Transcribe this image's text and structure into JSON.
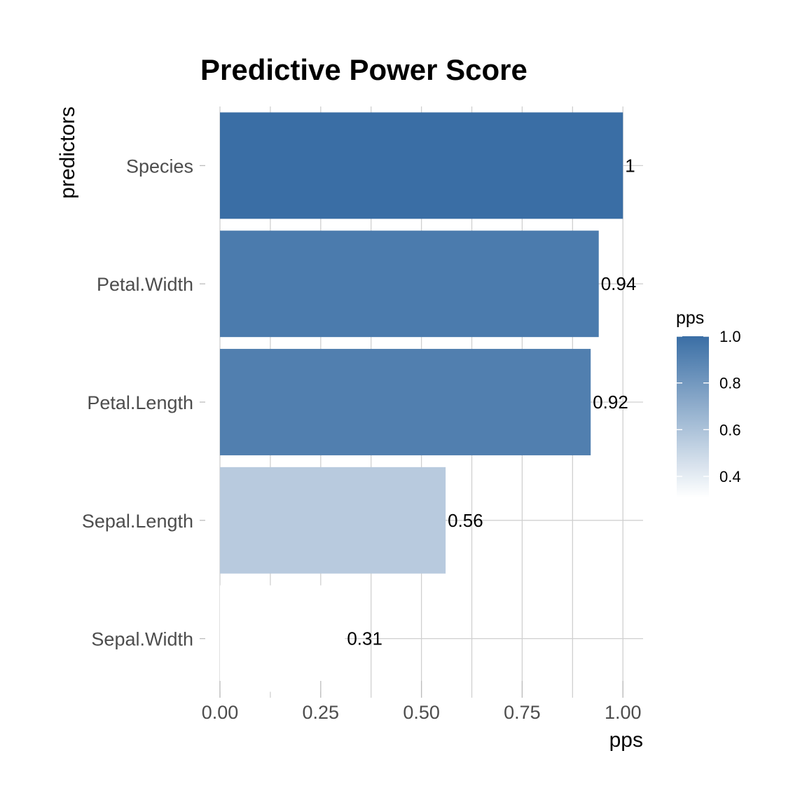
{
  "chart_data": {
    "type": "bar",
    "orientation": "horizontal",
    "title": "Predictive Power Score",
    "xlabel": "pps",
    "ylabel": "predictors",
    "categories": [
      "Species",
      "Petal.Width",
      "Petal.Length",
      "Sepal.Length",
      "Sepal.Width"
    ],
    "values": [
      1.0,
      0.94,
      0.92,
      0.56,
      0.31
    ],
    "data_labels": [
      "1",
      "0.94",
      "0.92",
      "0.56",
      "0.31"
    ],
    "xlim": [
      0,
      1.05
    ],
    "x_ticks": [
      0,
      0.25,
      0.5,
      0.75,
      1.0
    ],
    "x_tick_labels": [
      "0.00",
      "0.25",
      "0.50",
      "0.75",
      "1.00"
    ],
    "grid": true,
    "legend": {
      "title": "pps",
      "position": "right",
      "type": "colorbar",
      "range": [
        0.31,
        1.0
      ],
      "ticks": [
        1.0,
        0.8,
        0.6,
        0.4
      ],
      "tick_labels": [
        "1.0",
        "0.8",
        "0.6",
        "0.4"
      ],
      "color_low": "#ffffff",
      "color_high": "#3a6ea5"
    }
  }
}
